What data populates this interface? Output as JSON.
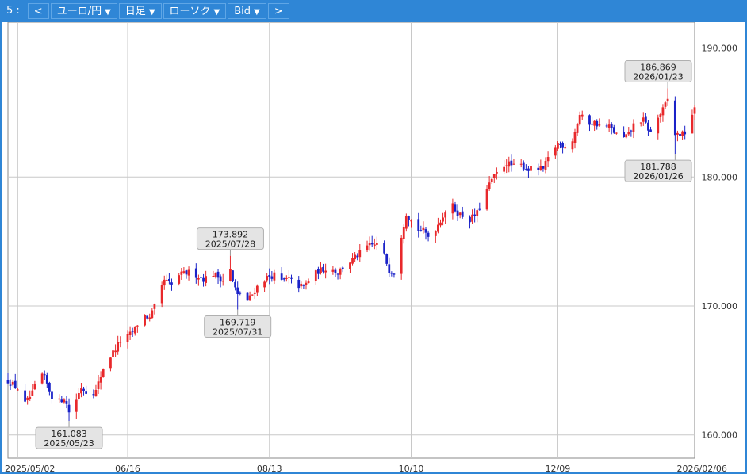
{
  "toolbar": {
    "slot_label": "5 :",
    "prev_label": "<",
    "pair_label": "ユーロ/円",
    "period_label": "日足",
    "chart_type_label": "ローソク",
    "price_side_label": "Bid",
    "next_label": ">",
    "dropdown_glyph": "▼"
  },
  "colors": {
    "toolbar": "#2f86d6",
    "up_candle": "#e8282b",
    "down_candle": "#1a22c8",
    "grid": "#c8c8c8",
    "annotation_bg": "#e4e4e4"
  },
  "chart_data": {
    "type": "candlestick",
    "instrument": "ユーロ/円",
    "ylim": [
      158.2,
      192.0
    ],
    "x_range_days": [
      -4,
      277
    ],
    "y_ticks": [
      "190.000",
      "180.000",
      "170.000",
      "160.000"
    ],
    "y_tick_values": [
      190,
      180,
      170,
      160
    ],
    "x_ticks": [
      {
        "label": "2025/05/02",
        "day": 0
      },
      {
        "label": "06/16",
        "day": 45
      },
      {
        "label": "08/13",
        "day": 103
      },
      {
        "label": "10/10",
        "day": 161
      },
      {
        "label": "12/09",
        "day": 221
      },
      {
        "label": "2026/02/06",
        "day": 280
      }
    ],
    "grid": true,
    "annotations": [
      {
        "price": "161.083",
        "date": "2025/05/23",
        "day": 21,
        "value": 161.083,
        "kind": "low"
      },
      {
        "price": "173.892",
        "date": "2025/07/28",
        "day": 87,
        "value": 173.892,
        "kind": "high"
      },
      {
        "price": "169.719",
        "date": "2025/07/31",
        "day": 90,
        "value": 169.719,
        "kind": "low"
      },
      {
        "price": "186.869",
        "date": "2026/01/23",
        "day": 266,
        "value": 186.869,
        "kind": "high"
      },
      {
        "price": "181.788",
        "date": "2026/01/26",
        "day": 269,
        "value": 181.788,
        "kind": "low"
      }
    ],
    "anchors": [
      [
        -4,
        164.2
      ],
      [
        0,
        163.6
      ],
      [
        3,
        162.4
      ],
      [
        6,
        163.2
      ],
      [
        9,
        164.9
      ],
      [
        11,
        164.4
      ],
      [
        14,
        163.0
      ],
      [
        17,
        162.6
      ],
      [
        19,
        162.9
      ],
      [
        21,
        161.8
      ],
      [
        23,
        162.3
      ],
      [
        26,
        163.7
      ],
      [
        29,
        163.2
      ],
      [
        32,
        163.4
      ],
      [
        35,
        165.2
      ],
      [
        38,
        166.1
      ],
      [
        42,
        167.3
      ],
      [
        45,
        167.6
      ],
      [
        48,
        168.2
      ],
      [
        51,
        169.4
      ],
      [
        54,
        169.0
      ],
      [
        57,
        170.4
      ],
      [
        60,
        172.0
      ],
      [
        63,
        171.6
      ],
      [
        66,
        172.4
      ],
      [
        70,
        172.6
      ],
      [
        73,
        172.4
      ],
      [
        76,
        172.1
      ],
      [
        80,
        172.5
      ],
      [
        84,
        172.0
      ],
      [
        87,
        172.8
      ],
      [
        88,
        171.9
      ],
      [
        90,
        170.8
      ],
      [
        92,
        171.2
      ],
      [
        94,
        170.4
      ],
      [
        96,
        170.9
      ],
      [
        99,
        171.8
      ],
      [
        102,
        172.2
      ],
      [
        105,
        172.4
      ],
      [
        108,
        171.9
      ],
      [
        111,
        172.1
      ],
      [
        114,
        171.6
      ],
      [
        117,
        171.5
      ],
      [
        120,
        172.2
      ],
      [
        123,
        172.7
      ],
      [
        127,
        173.0
      ],
      [
        131,
        172.6
      ],
      [
        135,
        173.3
      ],
      [
        139,
        173.9
      ],
      [
        143,
        174.6
      ],
      [
        147,
        174.8
      ],
      [
        150,
        173.9
      ],
      [
        152,
        172.8
      ],
      [
        154,
        172.6
      ],
      [
        157,
        175.5
      ],
      [
        159,
        177.2
      ],
      [
        161,
        176.6
      ],
      [
        163,
        176.0
      ],
      [
        166,
        175.8
      ],
      [
        168,
        175.4
      ],
      [
        171,
        176.0
      ],
      [
        174,
        177.0
      ],
      [
        177,
        178.0
      ],
      [
        180,
        177.2
      ],
      [
        182,
        177.0
      ],
      [
        185,
        176.7
      ],
      [
        188,
        177.2
      ],
      [
        191,
        178.6
      ],
      [
        194,
        179.8
      ],
      [
        197,
        180.5
      ],
      [
        200,
        181.1
      ],
      [
        203,
        180.8
      ],
      [
        206,
        180.9
      ],
      [
        209,
        180.6
      ],
      [
        212,
        180.6
      ],
      [
        215,
        180.6
      ],
      [
        218,
        181.8
      ],
      [
        221,
        182.6
      ],
      [
        224,
        182.4
      ],
      [
        227,
        182.9
      ],
      [
        230,
        184.8
      ],
      [
        233,
        184.2
      ],
      [
        236,
        184.2
      ],
      [
        239,
        183.9
      ],
      [
        242,
        183.9
      ],
      [
        245,
        183.3
      ],
      [
        248,
        183.0
      ],
      [
        250,
        183.3
      ],
      [
        253,
        184.4
      ],
      [
        256,
        184.4
      ],
      [
        259,
        183.4
      ],
      [
        262,
        184.6
      ],
      [
        264,
        185.2
      ],
      [
        266,
        186.0
      ],
      [
        267,
        184.5
      ],
      [
        269,
        183.3
      ],
      [
        272,
        183.3
      ],
      [
        274,
        183.6
      ],
      [
        276,
        184.9
      ],
      [
        277,
        185.2
      ]
    ]
  }
}
